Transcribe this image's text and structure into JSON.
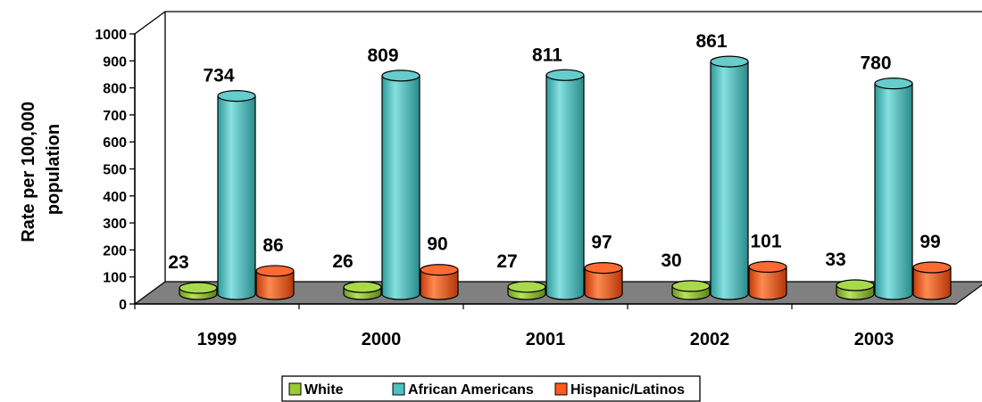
{
  "chart_data": {
    "type": "bar",
    "title": "",
    "xlabel": "",
    "ylabel": "Rate per 100,000 population",
    "ylim": [
      0,
      1000
    ],
    "yticks": [
      0,
      100,
      200,
      300,
      400,
      500,
      600,
      700,
      800,
      900,
      1000
    ],
    "categories": [
      "1999",
      "2000",
      "2001",
      "2002",
      "2003"
    ],
    "series": [
      {
        "name": "White",
        "values": [
          23,
          26,
          27,
          30,
          33
        ],
        "color": "#99cc33"
      },
      {
        "name": "African Americans",
        "values": [
          734,
          809,
          811,
          861,
          780
        ],
        "color": "#4fbfbf"
      },
      {
        "name": "Hispanic/Latinos",
        "values": [
          86,
          90,
          97,
          101,
          99
        ],
        "color": "#ff5a1f"
      }
    ],
    "legend_position": "bottom",
    "grid": false,
    "style": "3d-cylinder"
  }
}
